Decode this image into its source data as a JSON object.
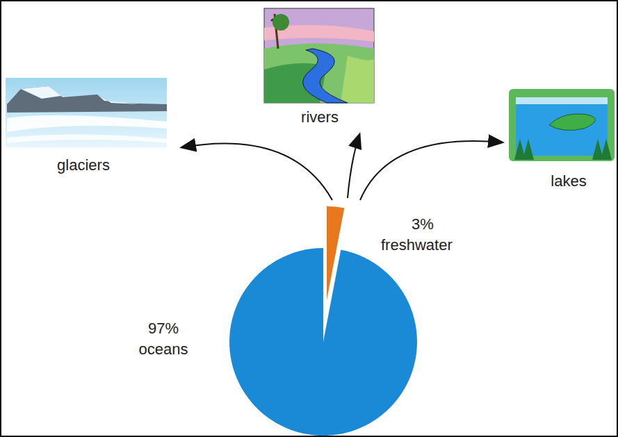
{
  "chart_data": {
    "type": "pie",
    "categories": [
      "freshwater",
      "oceans"
    ],
    "values": [
      3,
      97
    ],
    "value_labels": [
      "3%",
      "97%"
    ],
    "colors": [
      "#e8781e",
      "#1a8ad6"
    ],
    "data_labels": true,
    "annotations": [
      "glaciers",
      "rivers",
      "lakes"
    ]
  }
}
